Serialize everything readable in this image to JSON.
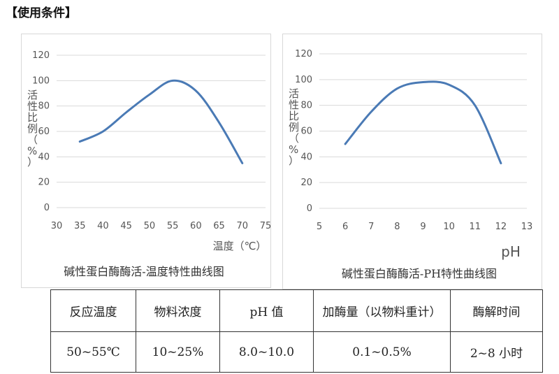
{
  "page": {
    "heading": "【使用条件】"
  },
  "chart_data": [
    {
      "type": "line",
      "title": "碱性蛋白酶酶活-温度特性曲线图",
      "xlabel": "温度（℃）",
      "ylabel": "活性比例（%）",
      "xticks": [
        "30",
        "35",
        "40",
        "45",
        "50",
        "55",
        "60",
        "65",
        "70",
        "75"
      ],
      "yticks": [
        "0",
        "20",
        "40",
        "60",
        "80",
        "100",
        "120"
      ],
      "xlim": [
        30,
        75
      ],
      "ylim": [
        0,
        120
      ],
      "grid": "horizontal",
      "color": "#4a7ab5",
      "series": [
        {
          "x": [
            35,
            40,
            45,
            50,
            55,
            60,
            65,
            70
          ],
          "y": [
            52,
            60,
            75,
            89,
            100,
            92,
            67,
            35
          ]
        }
      ]
    },
    {
      "type": "line",
      "title": "碱性蛋白酶酶活-PH特性曲线图",
      "xlabel": "pH",
      "ylabel": "活性比例（%）",
      "xticks": [
        "5",
        "6",
        "7",
        "8",
        "9",
        "10",
        "11",
        "12",
        "13"
      ],
      "yticks": [
        "0",
        "20",
        "40",
        "60",
        "80",
        "100",
        "120"
      ],
      "xlim": [
        5,
        13
      ],
      "ylim": [
        0,
        120
      ],
      "grid": "horizontal",
      "color": "#4a7ab5",
      "series": [
        {
          "x": [
            6,
            7,
            8,
            9,
            10,
            11,
            12
          ],
          "y": [
            50,
            75,
            93,
            98,
            96,
            80,
            35
          ]
        }
      ]
    }
  ],
  "conditions_table": {
    "headers": [
      "反应温度",
      "物料浓度",
      "pH 值",
      "加酶量（以物料重计）",
      "酶解时间"
    ],
    "rows": [
      [
        "50~55℃",
        "10~25%",
        "8.0~10.0",
        "0.1~0.5%",
        "2~8 小时"
      ]
    ]
  }
}
